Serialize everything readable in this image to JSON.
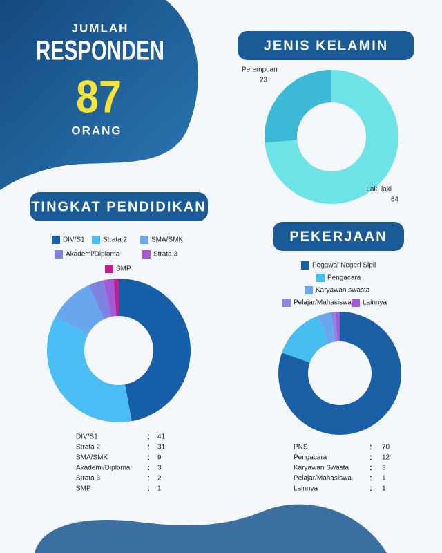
{
  "header": {
    "line1": "JUMLAH",
    "line2": "RESPONDEN",
    "total": "87",
    "line3": "ORANG"
  },
  "chart_data": [
    {
      "type": "pie",
      "title": "JENIS KELAMIN",
      "categories": [
        "Laki-laki",
        "Perempuan"
      ],
      "values": [
        64,
        23
      ],
      "colors": [
        "#6de3e8",
        "#3db9d8"
      ]
    },
    {
      "type": "pie",
      "title": "TINGKAT PENDIDIKAN",
      "categories": [
        "DIV/S1",
        "Strata 2",
        "SMA/SMK",
        "Akademi/Diploma",
        "Strata 3",
        "SMP"
      ],
      "values": [
        41,
        31,
        9,
        3,
        2,
        1
      ],
      "table_labels": [
        "DIV/S1",
        "Strata 2",
        "SMA/SMK",
        "Akademi/Diploma",
        "Strata 3",
        "SMP"
      ],
      "colors": [
        "#175ea8",
        "#4bbdf5",
        "#69a6ee",
        "#7e83e0",
        "#a35ad6",
        "#c01f93"
      ],
      "legend": true
    },
    {
      "type": "pie",
      "title": "PEKERJAAN",
      "categories": [
        "Pegawai Negeri Sipil",
        "Pengacara",
        "Karyawan swasta",
        "Pelajar/Mahasiswa",
        "Lainnya"
      ],
      "values": [
        70,
        12,
        3,
        1,
        1
      ],
      "table_labels": [
        "PNS",
        "Pengacara",
        "Karyawan Swasta",
        "Pelajar/Mahasiswa",
        "Lainnya"
      ],
      "colors": [
        "#1a5fa3",
        "#47bef2",
        "#69a6ee",
        "#8a87e0",
        "#a35ad6"
      ],
      "legend": true
    }
  ]
}
